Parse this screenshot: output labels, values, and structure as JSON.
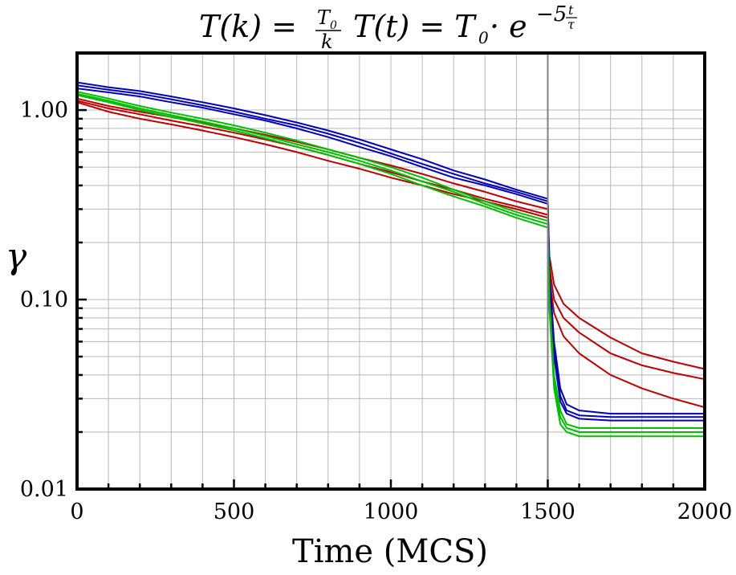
{
  "chart_data": {
    "type": "line",
    "title": "T(k) = T0/k  T(t) = T0 · e^(-5 t/τ)",
    "title_parts": {
      "left": "T(k) =",
      "left_num": "T",
      "left_num_sub": "0",
      "left_den": "k",
      "right": "T(t) = T",
      "right_sub": "0",
      "right_mid": " · e",
      "right_exp": "−5",
      "right_exp_num": "t",
      "right_exp_den": "τ"
    },
    "xlabel": "Time (MCS)",
    "ylabel": "γ",
    "xlim": [
      0,
      2000
    ],
    "ylim": [
      0.01,
      2.0
    ],
    "yscale": "log",
    "xticks": [
      0,
      500,
      1000,
      1500,
      2000
    ],
    "xtick_labels": [
      "0",
      "500",
      "1000",
      "1500",
      "2000"
    ],
    "yticks": [
      0.01,
      0.1,
      1.0
    ],
    "ytick_labels": [
      "0.01",
      "0.10",
      "1.00"
    ],
    "grid": true,
    "vline_x": 1500,
    "series": [
      {
        "color": "#c00000",
        "x": [
          0,
          100,
          200,
          300,
          400,
          500,
          600,
          700,
          800,
          900,
          1000,
          1100,
          1200,
          1300,
          1400,
          1500,
          1505,
          1520,
          1550,
          1600,
          1700,
          1800,
          1900,
          2000
        ],
        "y": [
          1.15,
          1.05,
          0.98,
          0.92,
          0.86,
          0.8,
          0.74,
          0.68,
          0.62,
          0.56,
          0.51,
          0.46,
          0.41,
          0.37,
          0.33,
          0.3,
          0.17,
          0.12,
          0.095,
          0.08,
          0.063,
          0.052,
          0.047,
          0.043
        ]
      },
      {
        "color": "#c00000",
        "x": [
          0,
          100,
          200,
          300,
          400,
          500,
          600,
          700,
          800,
          900,
          1000,
          1100,
          1200,
          1300,
          1400,
          1500,
          1505,
          1520,
          1550,
          1600,
          1700,
          1800,
          1900,
          2000
        ],
        "y": [
          1.12,
          1.02,
          0.95,
          0.88,
          0.82,
          0.76,
          0.7,
          0.64,
          0.58,
          0.52,
          0.47,
          0.42,
          0.38,
          0.34,
          0.31,
          0.28,
          0.15,
          0.1,
          0.08,
          0.067,
          0.052,
          0.045,
          0.041,
          0.038
        ]
      },
      {
        "color": "#c00000",
        "x": [
          0,
          100,
          200,
          300,
          400,
          500,
          600,
          700,
          800,
          900,
          1000,
          1100,
          1200,
          1300,
          1400,
          1500,
          1505,
          1520,
          1550,
          1600,
          1700,
          1800,
          1900,
          2000
        ],
        "y": [
          1.1,
          0.98,
          0.9,
          0.84,
          0.78,
          0.72,
          0.66,
          0.6,
          0.54,
          0.49,
          0.44,
          0.4,
          0.36,
          0.33,
          0.3,
          0.27,
          0.13,
          0.085,
          0.064,
          0.052,
          0.04,
          0.034,
          0.03,
          0.027
        ]
      },
      {
        "color": "#0000c0",
        "x": [
          0,
          100,
          200,
          300,
          400,
          500,
          600,
          700,
          800,
          900,
          1000,
          1100,
          1200,
          1300,
          1400,
          1500,
          1505,
          1520,
          1540,
          1560,
          1600,
          1700,
          1800,
          1900,
          2000
        ],
        "y": [
          1.4,
          1.32,
          1.26,
          1.18,
          1.1,
          1.02,
          0.94,
          0.86,
          0.78,
          0.7,
          0.62,
          0.55,
          0.48,
          0.43,
          0.38,
          0.34,
          0.14,
          0.06,
          0.034,
          0.028,
          0.026,
          0.025,
          0.025,
          0.025,
          0.025
        ]
      },
      {
        "color": "#0000c0",
        "x": [
          0,
          100,
          200,
          300,
          400,
          500,
          600,
          700,
          800,
          900,
          1000,
          1100,
          1200,
          1300,
          1400,
          1500,
          1505,
          1520,
          1540,
          1560,
          1600,
          1700,
          1800,
          1900,
          2000
        ],
        "y": [
          1.35,
          1.28,
          1.22,
          1.14,
          1.06,
          0.98,
          0.9,
          0.83,
          0.75,
          0.67,
          0.59,
          0.52,
          0.46,
          0.41,
          0.37,
          0.33,
          0.13,
          0.055,
          0.031,
          0.026,
          0.0245,
          0.024,
          0.024,
          0.024,
          0.024
        ]
      },
      {
        "color": "#0000c0",
        "x": [
          0,
          100,
          200,
          300,
          400,
          500,
          600,
          700,
          800,
          900,
          1000,
          1100,
          1200,
          1300,
          1400,
          1500,
          1505,
          1520,
          1540,
          1560,
          1600,
          1700,
          1800,
          1900,
          2000
        ],
        "y": [
          1.3,
          1.24,
          1.18,
          1.1,
          1.03,
          0.95,
          0.88,
          0.8,
          0.72,
          0.64,
          0.57,
          0.5,
          0.44,
          0.4,
          0.36,
          0.32,
          0.12,
          0.05,
          0.029,
          0.025,
          0.0235,
          0.023,
          0.023,
          0.023,
          0.023
        ]
      },
      {
        "color": "#00c000",
        "x": [
          0,
          100,
          200,
          300,
          400,
          500,
          600,
          700,
          800,
          900,
          1000,
          1100,
          1200,
          1300,
          1400,
          1500,
          1505,
          1520,
          1540,
          1560,
          1600,
          1700,
          1800,
          1900,
          2000
        ],
        "y": [
          1.25,
          1.15,
          1.05,
          0.97,
          0.9,
          0.83,
          0.76,
          0.69,
          0.62,
          0.56,
          0.5,
          0.44,
          0.38,
          0.33,
          0.29,
          0.26,
          0.1,
          0.04,
          0.026,
          0.022,
          0.021,
          0.021,
          0.021,
          0.021,
          0.021
        ]
      },
      {
        "color": "#00c000",
        "x": [
          0,
          100,
          200,
          300,
          400,
          500,
          600,
          700,
          800,
          900,
          1000,
          1100,
          1200,
          1300,
          1400,
          1500,
          1505,
          1520,
          1540,
          1560,
          1600,
          1700,
          1800,
          1900,
          2000
        ],
        "y": [
          1.22,
          1.12,
          1.02,
          0.94,
          0.87,
          0.8,
          0.73,
          0.66,
          0.6,
          0.54,
          0.48,
          0.42,
          0.37,
          0.32,
          0.28,
          0.25,
          0.095,
          0.037,
          0.024,
          0.021,
          0.02,
          0.02,
          0.02,
          0.02,
          0.02
        ]
      },
      {
        "color": "#00c000",
        "x": [
          0,
          100,
          200,
          300,
          400,
          500,
          600,
          700,
          800,
          900,
          1000,
          1100,
          1200,
          1300,
          1400,
          1500,
          1505,
          1520,
          1540,
          1560,
          1600,
          1700,
          1800,
          1900,
          2000
        ],
        "y": [
          1.2,
          1.1,
          1.0,
          0.92,
          0.85,
          0.78,
          0.71,
          0.64,
          0.58,
          0.52,
          0.46,
          0.4,
          0.35,
          0.31,
          0.27,
          0.24,
          0.09,
          0.034,
          0.022,
          0.02,
          0.019,
          0.019,
          0.019,
          0.019,
          0.019
        ]
      }
    ]
  }
}
